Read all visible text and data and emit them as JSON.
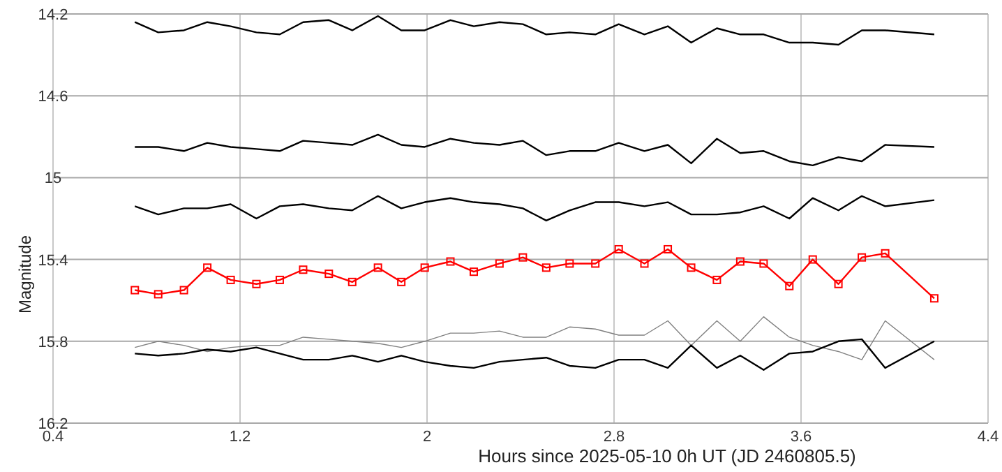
{
  "chart_data": {
    "type": "line",
    "xlabel": "Hours since 2025-05-10 0h UT (JD 2460805.5)",
    "ylabel": "Magnitude",
    "x": [
      0.75,
      0.85,
      0.96,
      1.06,
      1.16,
      1.27,
      1.37,
      1.47,
      1.58,
      1.68,
      1.79,
      1.89,
      1.99,
      2.1,
      2.2,
      2.31,
      2.41,
      2.51,
      2.61,
      2.72,
      2.82,
      2.93,
      3.03,
      3.13,
      3.24,
      3.34,
      3.44,
      3.55,
      3.65,
      3.76,
      3.86,
      3.96,
      4.17
    ],
    "xlim": [
      0.4,
      4.4
    ],
    "xticks": [
      0.4,
      1.2,
      2,
      2.8,
      3.6,
      4.4
    ],
    "ylim": [
      16.2,
      14.2
    ],
    "yticks": [
      14.2,
      14.6,
      15,
      15.4,
      15.8,
      16.2
    ],
    "grid": true,
    "line_style": "solid",
    "series": [
      {
        "color": "#000000",
        "marker": "none",
        "values": [
          14.24,
          14.29,
          14.28,
          14.24,
          14.26,
          14.29,
          14.3,
          14.24,
          14.23,
          14.28,
          14.21,
          14.28,
          14.28,
          14.23,
          14.26,
          14.24,
          14.25,
          14.3,
          14.29,
          14.3,
          14.25,
          14.3,
          14.26,
          14.34,
          14.27,
          14.3,
          14.3,
          14.34,
          14.34,
          14.35,
          14.28,
          14.28,
          14.3
        ]
      },
      {
        "color": "#000000",
        "marker": "none",
        "values": [
          14.85,
          14.85,
          14.87,
          14.83,
          14.85,
          14.86,
          14.87,
          14.82,
          14.83,
          14.84,
          14.79,
          14.84,
          14.85,
          14.81,
          14.83,
          14.84,
          14.82,
          14.89,
          14.87,
          14.87,
          14.83,
          14.87,
          14.84,
          14.93,
          14.81,
          14.88,
          14.87,
          14.92,
          14.94,
          14.9,
          14.92,
          14.84,
          14.85
        ]
      },
      {
        "color": "#000000",
        "marker": "none",
        "values": [
          15.14,
          15.18,
          15.15,
          15.15,
          15.13,
          15.2,
          15.14,
          15.13,
          15.15,
          15.16,
          15.09,
          15.15,
          15.12,
          15.1,
          15.12,
          15.13,
          15.15,
          15.21,
          15.16,
          15.12,
          15.12,
          15.14,
          15.12,
          15.18,
          15.18,
          15.17,
          15.14,
          15.2,
          15.1,
          15.16,
          15.09,
          15.14,
          15.11
        ]
      },
      {
        "color": "#ff0000",
        "marker": "square",
        "values": [
          15.55,
          15.57,
          15.55,
          15.44,
          15.5,
          15.52,
          15.5,
          15.45,
          15.47,
          15.51,
          15.44,
          15.51,
          15.44,
          15.41,
          15.46,
          15.42,
          15.39,
          15.44,
          15.42,
          15.42,
          15.35,
          15.42,
          15.35,
          15.44,
          15.5,
          15.41,
          15.42,
          15.53,
          15.4,
          15.52,
          15.39,
          15.37,
          15.59
        ]
      },
      {
        "color": "#808080",
        "marker": "none",
        "values": [
          15.83,
          15.8,
          15.82,
          15.85,
          15.83,
          15.82,
          15.82,
          15.78,
          15.79,
          15.8,
          15.81,
          15.83,
          15.8,
          15.76,
          15.76,
          15.75,
          15.78,
          15.78,
          15.73,
          15.74,
          15.77,
          15.77,
          15.7,
          15.82,
          15.7,
          15.8,
          15.68,
          15.78,
          15.82,
          15.85,
          15.89,
          15.7,
          15.89
        ]
      },
      {
        "color": "#000000",
        "marker": "none",
        "values": [
          15.86,
          15.87,
          15.86,
          15.84,
          15.85,
          15.83,
          15.86,
          15.89,
          15.89,
          15.87,
          15.9,
          15.87,
          15.9,
          15.92,
          15.93,
          15.9,
          15.89,
          15.88,
          15.92,
          15.93,
          15.89,
          15.89,
          15.93,
          15.82,
          15.93,
          15.87,
          15.94,
          15.86,
          15.85,
          15.8,
          15.79,
          15.93,
          15.8
        ]
      }
    ]
  }
}
